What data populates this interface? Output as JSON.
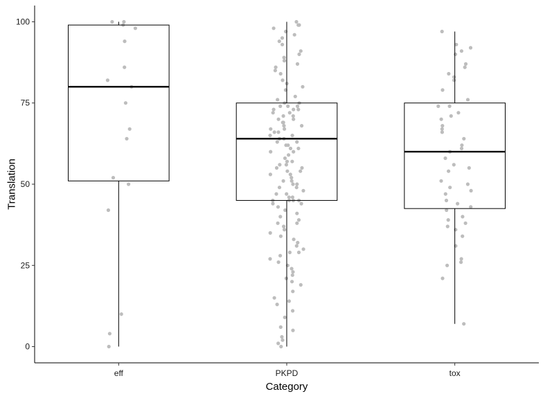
{
  "chart_data": {
    "type": "box",
    "xlabel": "Category",
    "ylabel": "Translation",
    "categories": [
      "eff",
      "PKPD",
      "tox"
    ],
    "ylim": [
      -5,
      105
    ],
    "yticks": [
      0,
      25,
      50,
      75,
      100
    ],
    "grid": false,
    "boxes": [
      {
        "category": "eff",
        "min": 0,
        "q1": 51,
        "median": 80,
        "q3": 99,
        "max": 100
      },
      {
        "category": "PKPD",
        "min": 0,
        "q1": 45,
        "median": 64,
        "q3": 75,
        "max": 100
      },
      {
        "category": "tox",
        "min": 7,
        "q1": 42.5,
        "median": 60,
        "q3": 75,
        "max": 97
      }
    ],
    "points": {
      "eff": [
        100,
        100,
        99,
        98,
        94,
        86,
        82,
        80,
        75,
        67,
        64,
        52,
        50,
        42,
        10,
        4,
        0
      ],
      "PKPD": [
        100,
        99,
        99,
        98,
        97,
        96,
        95,
        94,
        93,
        91,
        90,
        89,
        88,
        87,
        86,
        85,
        84,
        82,
        81,
        80,
        79,
        77,
        76,
        75,
        75,
        74,
        74,
        74,
        73,
        73,
        73,
        72,
        72,
        71,
        71,
        70,
        70,
        69,
        69,
        68,
        68,
        67,
        67,
        66,
        66,
        65,
        65,
        64,
        64,
        64,
        63,
        63,
        62,
        62,
        61,
        61,
        60,
        60,
        59,
        58,
        57,
        57,
        56,
        56,
        55,
        55,
        54,
        54,
        53,
        53,
        52,
        51,
        51,
        50,
        50,
        49,
        49,
        48,
        47,
        47,
        46,
        46,
        45,
        45,
        45,
        45,
        44,
        44,
        43,
        42,
        41,
        40,
        39,
        38,
        38,
        37,
        36,
        35,
        34,
        33,
        32,
        31,
        30,
        29,
        29,
        28,
        27,
        26,
        25,
        24,
        23,
        22,
        21,
        20,
        19,
        17,
        15,
        14,
        13,
        11,
        9,
        6,
        5,
        3,
        2,
        1,
        0
      ],
      "tox": [
        97,
        93,
        92,
        91,
        90,
        87,
        86,
        84,
        83,
        82,
        79,
        76,
        74,
        74,
        72,
        71,
        70,
        68,
        67,
        66,
        64,
        62,
        61,
        60,
        58,
        56,
        55,
        54,
        51,
        50,
        49,
        48,
        47,
        45,
        44,
        43,
        42,
        40,
        39,
        38,
        37,
        36,
        34,
        31,
        27,
        26,
        25,
        21,
        7
      ]
    }
  }
}
